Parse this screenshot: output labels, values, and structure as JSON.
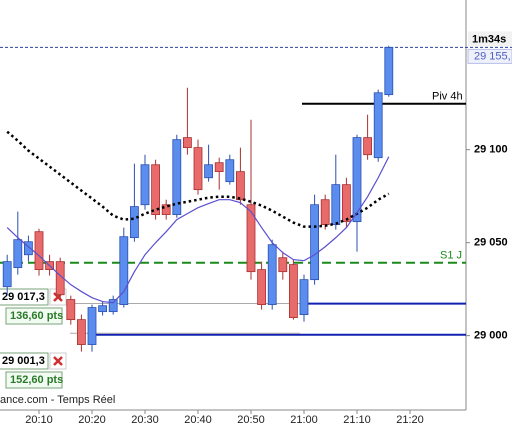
{
  "chart_data": {
    "type": "candlestick",
    "x": [
      "20:04",
      "20:06",
      "20:08",
      "20:10",
      "20:12",
      "20:14",
      "20:16",
      "20:18",
      "20:20",
      "20:22",
      "20:24",
      "20:26",
      "20:28",
      "20:30",
      "20:32",
      "20:34",
      "20:36",
      "20:38",
      "20:40",
      "20:42",
      "20:44",
      "20:46",
      "20:48",
      "20:50",
      "20:52",
      "20:54",
      "20:56",
      "20:58",
      "21:00",
      "21:02",
      "21:04",
      "21:06",
      "21:08",
      "21:10",
      "21:12",
      "21:14",
      "21:16"
    ],
    "open": [
      29026.3,
      29036.6,
      29043.5,
      29055.9,
      29039.8,
      29039.8,
      29019.4,
      29008.6,
      28995.2,
      29012.9,
      29012.9,
      29016.7,
      29052.7,
      29070.4,
      29091.9,
      29070.4,
      29065.1,
      29106.5,
      29101.1,
      29084.9,
      29093.0,
      29082.8,
      29088.2,
      29070.4,
      29035.5,
      29016.7,
      29041.9,
      29038.2,
      29011.3,
      29030.1,
      29073.1,
      29059.7,
      29081.2,
      29061.3,
      29106.5,
      29095.7,
      29129.6
    ],
    "high": [
      29043.5,
      29066.7,
      29053.8,
      29057.5,
      29043.5,
      29041.9,
      29021.5,
      29011.3,
      29016.7,
      29018.3,
      29021.5,
      29058.1,
      29092.5,
      29097.3,
      29094.6,
      29073.1,
      29108.0,
      29133.3,
      29105.4,
      29102.7,
      29095.7,
      29097.3,
      29101.1,
      29116.1,
      29039.8,
      29051.6,
      29045.2,
      29040.9,
      29032.8,
      29075.8,
      29075.8,
      29097.3,
      29084.9,
      29108.0,
      29118.8,
      29132.3,
      29155.9
    ],
    "low": [
      29022.0,
      29032.8,
      29039.8,
      29032.3,
      29032.3,
      29019.4,
      29005.9,
      28991.4,
      28991.4,
      29010.8,
      29011.3,
      29015.1,
      29050.5,
      29067.7,
      29062.4,
      29062.4,
      29063.4,
      29097.3,
      29075.8,
      29082.8,
      29078.5,
      29081.2,
      29070.4,
      29030.1,
      29014.0,
      29014.0,
      29030.1,
      29008.6,
      29007.5,
      29027.4,
      29057.0,
      29057.0,
      29058.1,
      29045.2,
      29094.6,
      29093.5,
      29128.5
    ],
    "close": [
      29039.8,
      29051.6,
      29050.5,
      29035.5,
      29035.5,
      29022.0,
      29008.6,
      28995.2,
      29015.1,
      29016.1,
      29019.4,
      29053.2,
      29069.4,
      29091.9,
      29065.1,
      29065.1,
      29105.4,
      29101.1,
      29078.5,
      29091.9,
      29088.2,
      29094.6,
      29073.1,
      29034.4,
      29016.7,
      29048.9,
      29034.4,
      29009.7,
      29030.1,
      29070.4,
      29059.7,
      29081.2,
      29061.3,
      29106.5,
      29097.3,
      29130.6,
      29155.0
    ],
    "up_color": "#5b8def",
    "down_color": "#e86a6a",
    "overlays": [
      {
        "color": "#000000",
        "style": "dotted",
        "values": [
          29109.7,
          29104.8,
          29099.5,
          29095.2,
          29090.9,
          29086.6,
          29082.3,
          29078.0,
          29073.7,
          29069.4,
          29064.5,
          29062.4,
          29062.9,
          29065.6,
          29067.7,
          29069.4,
          29071.0,
          29072.0,
          29073.1,
          29074.2,
          29074.7,
          29074.7,
          29073.7,
          29072.0,
          29069.9,
          29067.2,
          29064.0,
          29060.8,
          29058.6,
          29058.6,
          29059.1,
          29060.2,
          29062.4,
          29065.6,
          29068.8,
          29073.1,
          29076.3
        ]
      },
      {
        "color": "#5a4fd0",
        "style": "solid",
        "values": [
          29058.1,
          29052.7,
          29047.8,
          29043.0,
          29037.6,
          29032.3,
          29027.4,
          29023.7,
          29020.4,
          29018.3,
          29017.7,
          29023.7,
          29034.4,
          29043.5,
          29050.0,
          29055.9,
          29062.4,
          29065.6,
          29068.8,
          29071.0,
          29073.1,
          29073.1,
          29071.5,
          29066.7,
          29058.1,
          29050.0,
          29044.6,
          29040.9,
          29040.3,
          29043.5,
          29047.8,
          29052.7,
          29058.1,
          29066.1,
          29074.7,
          29084.9,
          29096.2
        ]
      }
    ],
    "levels": [
      {
        "value": 29124.7,
        "label": "Piv 4h",
        "color": "#000000",
        "style": "solid"
      },
      {
        "value": 29039.2,
        "label": "S1 J",
        "color": "#1a8a1a",
        "style": "dashed"
      },
      {
        "value": 29017.2,
        "color": "#1020b0",
        "style": "solid"
      },
      {
        "value": 29000.5,
        "color": "#1020b0",
        "style": "solid"
      }
    ],
    "last_price": {
      "value": 29155.0,
      "label": "29 155,"
    },
    "timer": "1m34s",
    "orders": [
      {
        "value": 29017.3,
        "label": "29 017,3",
        "pts": "136,60 pts"
      },
      {
        "value": 29001.3,
        "label": "29 001,3",
        "pts": "152,60 pts"
      }
    ],
    "source": "ance.com - Temps Réel",
    "ylim": [
      28960,
      29180.5
    ],
    "yticks": [
      {
        "value": 29000,
        "label": "29 000"
      },
      {
        "value": 29050,
        "label": "29 050"
      },
      {
        "value": 29100,
        "label": "29 100"
      }
    ],
    "xticks": [
      "20:10",
      "20:20",
      "20:30",
      "20:40",
      "20:50",
      "21:00",
      "21:10",
      "21:20"
    ]
  }
}
